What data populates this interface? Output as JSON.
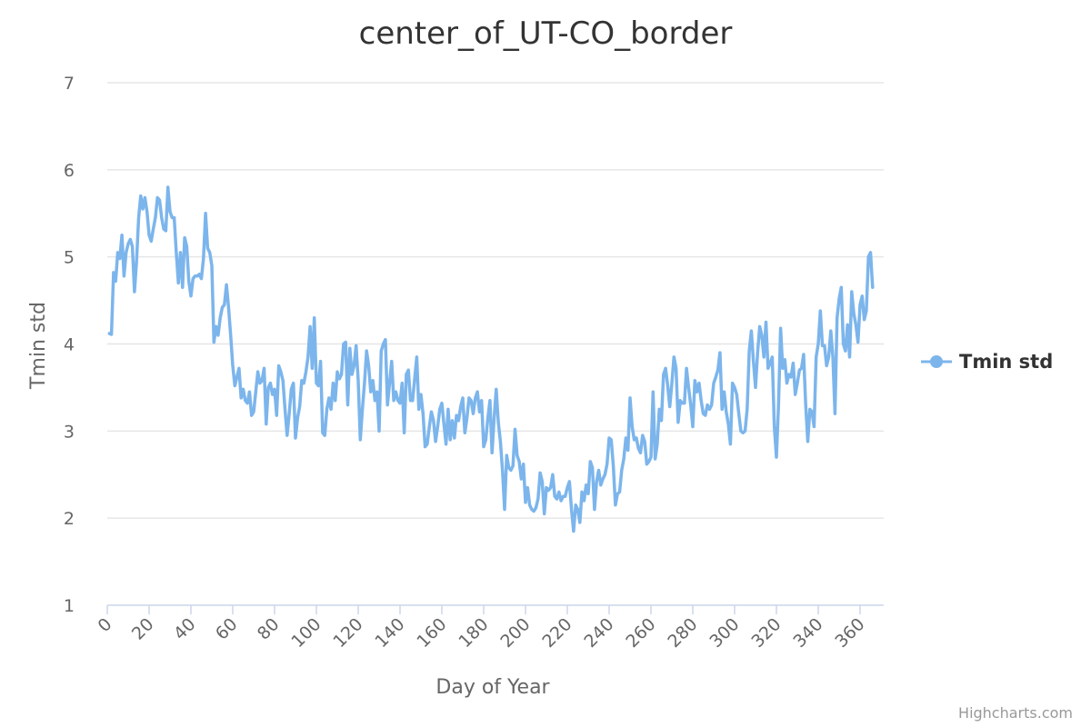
{
  "chart_data": {
    "type": "line",
    "title": "center_of_UT-CO_border",
    "xlabel": "Day of Year",
    "ylabel": "Tmin std",
    "xlim": [
      0,
      365
    ],
    "ylim": [
      1,
      7
    ],
    "x_ticks": [
      0,
      20,
      40,
      60,
      80,
      100,
      120,
      140,
      160,
      180,
      200,
      220,
      240,
      260,
      280,
      300,
      320,
      340,
      360
    ],
    "y_ticks": [
      1,
      2,
      3,
      4,
      5,
      6,
      7
    ],
    "grid": true,
    "legend": "right",
    "series": [
      {
        "name": "Tmin std",
        "color": "#7cb5ec",
        "x": [
          1,
          2,
          3,
          4,
          5,
          6,
          7,
          8,
          9,
          10,
          11,
          12,
          13,
          14,
          15,
          16,
          17,
          18,
          19,
          20,
          21,
          22,
          23,
          24,
          25,
          26,
          27,
          28,
          29,
          30,
          31,
          32,
          33,
          34,
          35,
          36,
          37,
          38,
          39,
          40,
          41,
          42,
          43,
          44,
          45,
          46,
          47,
          48,
          49,
          50,
          51,
          52,
          53,
          54,
          55,
          56,
          57,
          58,
          59,
          60,
          61,
          62,
          63,
          64,
          65,
          66,
          67,
          68,
          69,
          70,
          71,
          72,
          73,
          74,
          75,
          76,
          77,
          78,
          79,
          80,
          81,
          82,
          83,
          84,
          85,
          86,
          87,
          88,
          89,
          90,
          91,
          92,
          93,
          94,
          95,
          96,
          97,
          98,
          99,
          100,
          101,
          102,
          103,
          104,
          105,
          106,
          107,
          108,
          109,
          110,
          111,
          112,
          113,
          114,
          115,
          116,
          117,
          118,
          119,
          120,
          121,
          122,
          123,
          124,
          125,
          126,
          127,
          128,
          129,
          130,
          131,
          132,
          133,
          134,
          135,
          136,
          137,
          138,
          139,
          140,
          141,
          142,
          143,
          144,
          145,
          146,
          147,
          148,
          149,
          150,
          151,
          152,
          153,
          154,
          155,
          156,
          157,
          158,
          159,
          160,
          161,
          162,
          163,
          164,
          165,
          166,
          167,
          168,
          169,
          170,
          171,
          172,
          173,
          174,
          175,
          176,
          177,
          178,
          179,
          180,
          181,
          182,
          183,
          184,
          185,
          186,
          187,
          188,
          189,
          190,
          191,
          192,
          193,
          194,
          195,
          196,
          197,
          198,
          199,
          200,
          201,
          202,
          203,
          204,
          205,
          206,
          207,
          208,
          209,
          210,
          211,
          212,
          213,
          214,
          215,
          216,
          217,
          218,
          219,
          220,
          221,
          222,
          223,
          224,
          225,
          226,
          227,
          228,
          229,
          230,
          231,
          232,
          233,
          234,
          235,
          236,
          237,
          238,
          239,
          240,
          241,
          242,
          243,
          244,
          245,
          246,
          247,
          248,
          249,
          250,
          251,
          252,
          253,
          254,
          255,
          256,
          257,
          258,
          259,
          260,
          261,
          262,
          263,
          264,
          265,
          266,
          267,
          268,
          269,
          270,
          271,
          272,
          273,
          274,
          275,
          276,
          277,
          278,
          279,
          280,
          281,
          282,
          283,
          284,
          285,
          286,
          287,
          288,
          289,
          290,
          291,
          292,
          293,
          294,
          295,
          296,
          297,
          298,
          299,
          300,
          301,
          302,
          303,
          304,
          305,
          306,
          307,
          308,
          309,
          310,
          311,
          312,
          313,
          314,
          315,
          316,
          317,
          318,
          319,
          320,
          321,
          322,
          323,
          324,
          325,
          326,
          327,
          328,
          329,
          330,
          331,
          332,
          333,
          334,
          335,
          336,
          337,
          338,
          339,
          340,
          341,
          342,
          343,
          344,
          345,
          346,
          347,
          348,
          349,
          350,
          351,
          352,
          353,
          354,
          355,
          356,
          357,
          358,
          359,
          360,
          361,
          362,
          363,
          364,
          365,
          366
        ],
        "values": [
          4.12,
          4.11,
          4.82,
          4.72,
          5.05,
          4.98,
          5.25,
          4.78,
          5.05,
          5.15,
          5.2,
          5.12,
          4.6,
          4.95,
          5.45,
          5.7,
          5.55,
          5.68,
          5.52,
          5.25,
          5.18,
          5.32,
          5.45,
          5.68,
          5.65,
          5.45,
          5.32,
          5.3,
          5.8,
          5.52,
          5.45,
          5.45,
          5.05,
          4.7,
          5.05,
          4.65,
          5.22,
          5.12,
          4.72,
          4.55,
          4.75,
          4.78,
          4.78,
          4.8,
          4.75,
          4.98,
          5.5,
          5.1,
          5.05,
          4.9,
          4.02,
          4.2,
          4.1,
          4.3,
          4.42,
          4.45,
          4.68,
          4.42,
          4.1,
          3.75,
          3.52,
          3.62,
          3.72,
          3.38,
          3.48,
          3.35,
          3.32,
          3.45,
          3.18,
          3.22,
          3.45,
          3.68,
          3.55,
          3.58,
          3.72,
          3.08,
          3.5,
          3.55,
          3.42,
          3.48,
          3.18,
          3.75,
          3.68,
          3.58,
          3.25,
          2.95,
          3.2,
          3.48,
          3.55,
          2.92,
          3.15,
          3.28,
          3.58,
          3.55,
          3.68,
          3.85,
          4.2,
          3.72,
          4.3,
          3.55,
          3.52,
          3.8,
          2.98,
          2.95,
          3.25,
          3.38,
          3.25,
          3.55,
          3.35,
          3.68,
          3.6,
          3.65,
          4.0,
          4.02,
          3.3,
          3.95,
          3.65,
          3.75,
          3.98,
          3.58,
          2.9,
          3.25,
          3.55,
          3.92,
          3.75,
          3.45,
          3.58,
          3.35,
          3.45,
          3.0,
          3.92,
          4.0,
          4.05,
          3.3,
          3.55,
          3.8,
          3.35,
          3.45,
          3.35,
          3.32,
          3.55,
          2.98,
          3.65,
          3.7,
          3.35,
          3.35,
          3.6,
          3.85,
          3.25,
          3.42,
          3.2,
          2.82,
          2.85,
          3.05,
          3.22,
          3.12,
          2.88,
          3.05,
          3.25,
          3.32,
          3.08,
          2.85,
          3.25,
          2.9,
          3.12,
          2.92,
          3.18,
          3.12,
          3.28,
          3.38,
          2.98,
          3.15,
          3.38,
          3.35,
          3.2,
          3.38,
          3.45,
          3.22,
          3.35,
          2.82,
          2.9,
          3.15,
          3.35,
          2.75,
          3.15,
          3.48,
          3.1,
          2.88,
          2.55,
          2.1,
          2.72,
          2.58,
          2.55,
          2.6,
          3.02,
          2.72,
          2.65,
          2.45,
          2.62,
          2.18,
          2.35,
          2.15,
          2.1,
          2.08,
          2.12,
          2.22,
          2.52,
          2.42,
          2.05,
          2.35,
          2.32,
          2.35,
          2.5,
          2.25,
          2.22,
          2.3,
          2.2,
          2.25,
          2.25,
          2.35,
          2.42,
          2.1,
          1.85,
          2.15,
          2.1,
          1.95,
          2.3,
          2.2,
          2.38,
          2.28,
          2.65,
          2.58,
          2.1,
          2.42,
          2.55,
          2.38,
          2.45,
          2.5,
          2.62,
          2.92,
          2.9,
          2.6,
          2.15,
          2.28,
          2.3,
          2.55,
          2.68,
          2.92,
          2.78,
          3.38,
          3.05,
          2.9,
          2.92,
          2.8,
          2.75,
          2.95,
          2.88,
          2.62,
          2.65,
          2.7,
          3.45,
          2.68,
          2.85,
          3.25,
          3.12,
          3.65,
          3.72,
          3.52,
          3.28,
          3.55,
          3.85,
          3.72,
          3.1,
          3.35,
          3.32,
          3.32,
          3.72,
          3.5,
          3.3,
          3.05,
          3.58,
          3.45,
          3.55,
          3.35,
          3.2,
          3.18,
          3.3,
          3.25,
          3.3,
          3.55,
          3.62,
          3.7,
          3.9,
          3.25,
          3.45,
          3.22,
          3.08,
          2.85,
          3.55,
          3.5,
          3.42,
          3.2,
          3.0,
          2.98,
          3.0,
          3.25,
          3.92,
          4.15,
          3.8,
          3.5,
          3.9,
          4.2,
          4.1,
          3.85,
          4.25,
          3.72,
          3.78,
          3.85,
          3.05,
          2.7,
          3.3,
          4.18,
          3.72,
          3.82,
          3.55,
          3.65,
          3.62,
          3.78,
          3.42,
          3.55,
          3.7,
          3.72,
          3.88,
          3.3,
          2.88,
          3.25,
          3.22,
          3.05,
          3.85,
          4.0,
          4.38,
          3.98,
          3.98,
          3.75,
          3.85,
          4.15,
          3.85,
          3.2,
          4.3,
          4.52,
          4.65,
          4.0,
          3.92,
          4.22,
          3.85,
          4.6,
          4.35,
          4.22,
          4.02,
          4.45,
          4.55,
          4.28,
          4.38,
          5.0,
          5.05,
          4.65
        ]
      }
    ],
    "credits": "Highcharts.com"
  }
}
